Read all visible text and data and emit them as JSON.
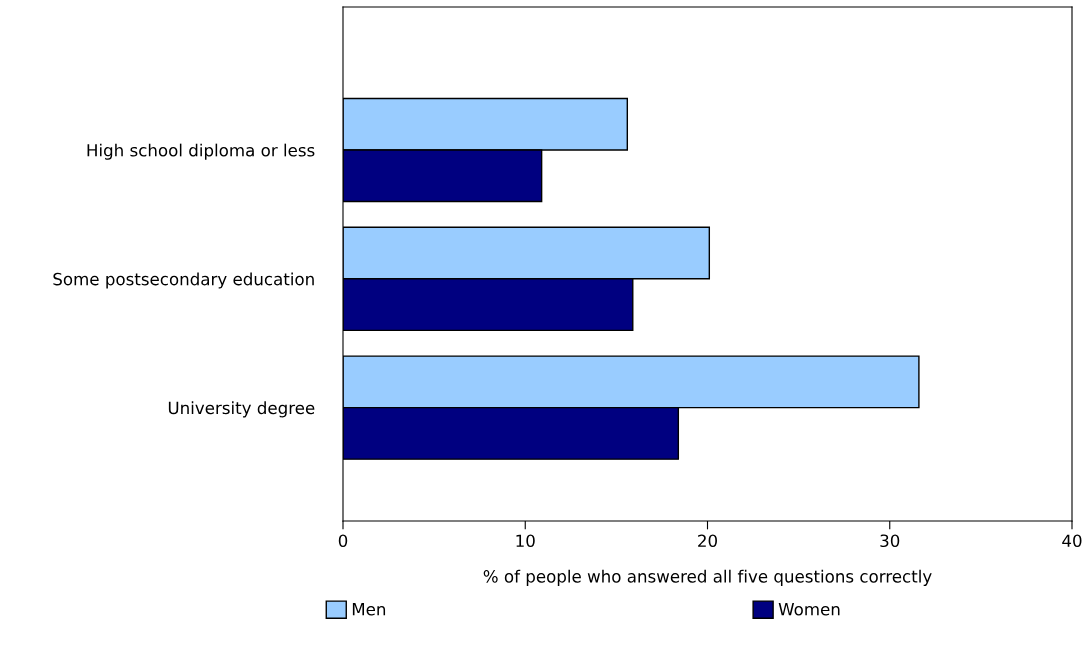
{
  "chart_data": {
    "type": "bar",
    "orientation": "horizontal",
    "xlabel": "% of people who answered all five questions correctly",
    "categories": [
      "High school diploma or less",
      "Some postsecondary education",
      "University degree"
    ],
    "series": [
      {
        "name": "Men",
        "color": "#99ccff",
        "values": [
          15.6,
          20.1,
          31.6
        ]
      },
      {
        "name": "Women",
        "color": "#000080",
        "values": [
          10.9,
          15.9,
          18.4
        ]
      }
    ],
    "xlim": [
      0,
      40
    ],
    "xticks": [
      0,
      10,
      20,
      30,
      40
    ],
    "grid": false,
    "legend": "bottom"
  }
}
